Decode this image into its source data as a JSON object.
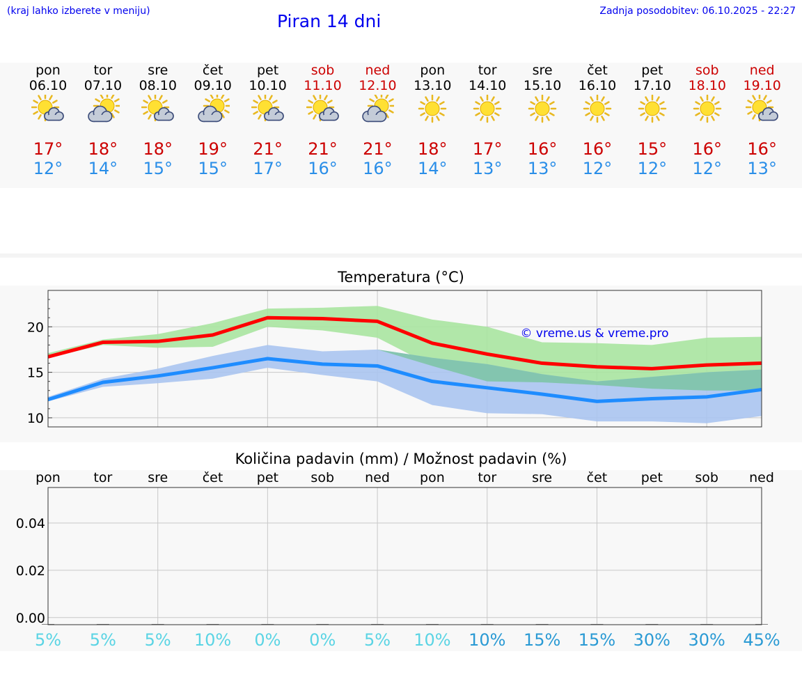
{
  "header": {
    "hint": "(kraj lahko izberete v meniju)",
    "title": "Piran 14 dni",
    "updated": "Zadnja posodobitev: 06.10.2025 - 22:27"
  },
  "days": [
    {
      "name": "pon",
      "date": "06.10",
      "weekend": false,
      "icon": "sun-cloud-icon",
      "max": "17°",
      "min": "12°"
    },
    {
      "name": "tor",
      "date": "07.10",
      "weekend": false,
      "icon": "cloud-sun-icon",
      "max": "18°",
      "min": "14°"
    },
    {
      "name": "sre",
      "date": "08.10",
      "weekend": false,
      "icon": "sun-cloud-icon",
      "max": "18°",
      "min": "15°"
    },
    {
      "name": "čet",
      "date": "09.10",
      "weekend": false,
      "icon": "cloud-sun-icon",
      "max": "19°",
      "min": "15°"
    },
    {
      "name": "pet",
      "date": "10.10",
      "weekend": false,
      "icon": "sun-cloud-icon",
      "max": "21°",
      "min": "17°"
    },
    {
      "name": "sob",
      "date": "11.10",
      "weekend": true,
      "icon": "sun-cloud-icon",
      "max": "21°",
      "min": "16°"
    },
    {
      "name": "ned",
      "date": "12.10",
      "weekend": true,
      "icon": "cloud-sun-icon",
      "max": "21°",
      "min": "16°"
    },
    {
      "name": "pon",
      "date": "13.10",
      "weekend": false,
      "icon": "sun-icon",
      "max": "18°",
      "min": "14°"
    },
    {
      "name": "tor",
      "date": "14.10",
      "weekend": false,
      "icon": "sun-icon",
      "max": "17°",
      "min": "13°"
    },
    {
      "name": "sre",
      "date": "15.10",
      "weekend": false,
      "icon": "sun-icon",
      "max": "16°",
      "min": "13°"
    },
    {
      "name": "čet",
      "date": "16.10",
      "weekend": false,
      "icon": "sun-icon",
      "max": "16°",
      "min": "12°"
    },
    {
      "name": "pet",
      "date": "17.10",
      "weekend": false,
      "icon": "sun-icon",
      "max": "15°",
      "min": "12°"
    },
    {
      "name": "sob",
      "date": "18.10",
      "weekend": true,
      "icon": "sun-icon",
      "max": "16°",
      "min": "12°"
    },
    {
      "name": "ned",
      "date": "19.10",
      "weekend": true,
      "icon": "sun-cloud-icon",
      "max": "16°",
      "min": "13°"
    }
  ],
  "colors": {
    "max_line": "#ff0000",
    "min_line": "#1e8cff",
    "max_band": "#a8e4a0",
    "min_band": "#aac4f0",
    "overlap_band": "#7cc4a4",
    "pct_light": "#5ad4e4",
    "pct_dark": "#2a9ad4"
  },
  "chart_data": [
    {
      "type": "line",
      "title": "Temperatura (°C)",
      "watermark": "© vreme.us & vreme.pro",
      "x": [
        0,
        1,
        2,
        3,
        4,
        5,
        6,
        7,
        8,
        9,
        10,
        11,
        12,
        13
      ],
      "ylim": [
        9,
        24
      ],
      "yticks": [
        10,
        15,
        20
      ],
      "series": [
        {
          "name": "max",
          "values": [
            16.7,
            18.3,
            18.4,
            19.1,
            21.0,
            20.9,
            20.6,
            18.2,
            17.0,
            16.0,
            15.6,
            15.4,
            15.8,
            16.0
          ]
        },
        {
          "name": "min",
          "values": [
            12.0,
            13.9,
            14.6,
            15.5,
            16.5,
            15.9,
            15.7,
            14.0,
            13.3,
            12.6,
            11.8,
            12.1,
            12.3,
            13.1
          ]
        },
        {
          "name": "max_band_high",
          "values": [
            17.1,
            18.6,
            19.2,
            20.4,
            22.0,
            22.1,
            22.3,
            20.8,
            20.0,
            18.3,
            18.2,
            18.0,
            18.8,
            18.9
          ]
        },
        {
          "name": "max_band_low",
          "values": [
            16.6,
            18.0,
            17.7,
            17.8,
            20.0,
            19.6,
            18.8,
            15.7,
            14.0,
            13.9,
            13.6,
            13.2,
            13.0,
            13.0
          ]
        },
        {
          "name": "min_band_high",
          "values": [
            12.3,
            14.3,
            15.4,
            16.8,
            18.0,
            17.3,
            17.5,
            16.6,
            15.9,
            14.8,
            14.0,
            14.5,
            15.0,
            15.3
          ]
        },
        {
          "name": "min_band_low",
          "values": [
            11.8,
            13.4,
            13.8,
            14.3,
            15.5,
            14.7,
            14.0,
            11.4,
            10.5,
            10.4,
            9.6,
            9.6,
            9.4,
            10.2
          ]
        }
      ]
    },
    {
      "type": "bar",
      "title": "Količina padavin (mm) / Možnost padavin (%)",
      "categories": [
        "pon",
        "tor",
        "sre",
        "čet",
        "pet",
        "sob",
        "ned",
        "pon",
        "tor",
        "sre",
        "čet",
        "pet",
        "sob",
        "ned"
      ],
      "values": [
        0,
        0,
        0,
        0,
        0,
        0,
        0,
        0,
        0,
        0,
        0,
        0,
        0,
        0
      ],
      "ylim": [
        -0.003,
        0.055
      ],
      "yticks": [
        "0.00",
        "0.02",
        "0.04"
      ],
      "ytick_values": [
        0.0,
        0.02,
        0.04
      ],
      "probability": [
        "5%",
        "5%",
        "5%",
        "10%",
        "0%",
        "0%",
        "5%",
        "10%",
        "10%",
        "15%",
        "15%",
        "30%",
        "30%",
        "45%"
      ]
    }
  ]
}
